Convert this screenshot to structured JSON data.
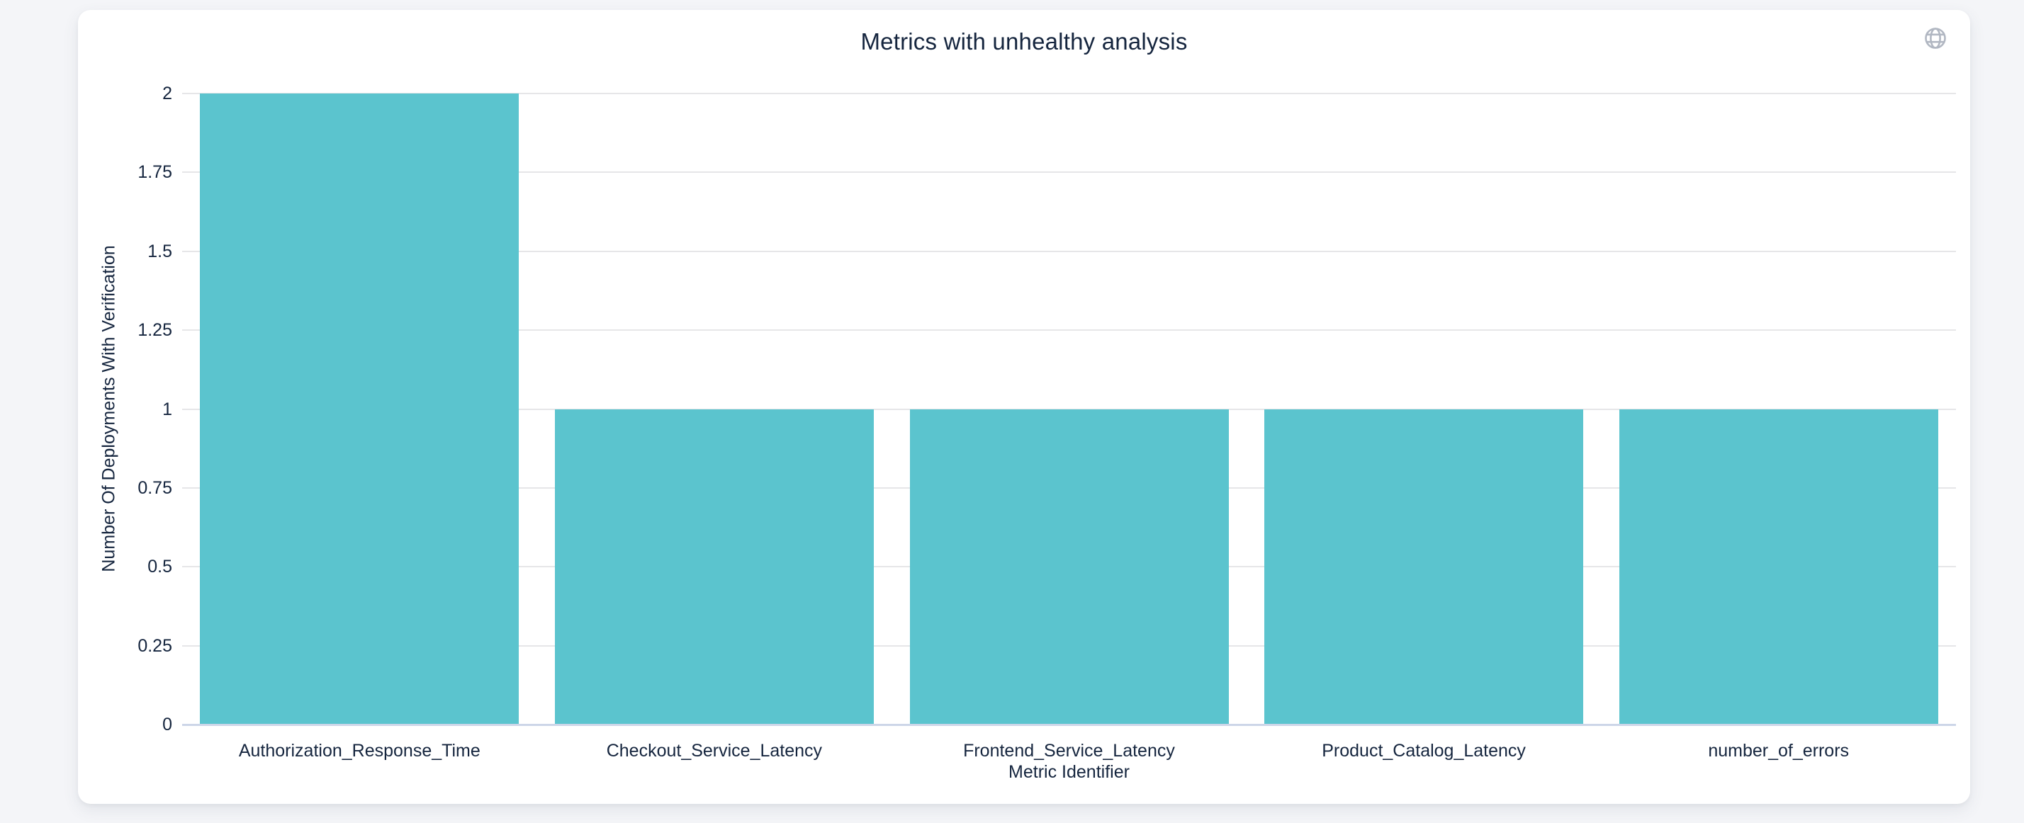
{
  "page": {
    "background_color": "#f4f5f8"
  },
  "header": {
    "title": "Metrics with unhealthy analysis",
    "icon": "globe-icon",
    "icon_color": "#b1b7c2"
  },
  "chart_data": {
    "type": "bar",
    "title": "Metrics with unhealthy analysis",
    "categories": [
      "Authorization_Response_Time",
      "Checkout_Service_Latency",
      "Frontend_Service_Latency",
      "Product_Catalog_Latency",
      "number_of_errors"
    ],
    "values": [
      2,
      1,
      1,
      1,
      1
    ],
    "xlabel": "Metric Identifier",
    "ylabel": "Number Of Deployments With Verification",
    "ylim": [
      0,
      2
    ],
    "yticks": [
      0,
      0.25,
      0.5,
      0.75,
      1,
      1.25,
      1.5,
      1.75,
      2
    ],
    "ytick_labels": [
      "0",
      "0.25",
      "0.5",
      "0.75",
      "1",
      "1.25",
      "1.5",
      "1.75",
      "2"
    ],
    "grid": true,
    "legend": "none",
    "bar_color": "#5bc4ce",
    "text_color": "#15253e",
    "grid_color": "#e6e6e8",
    "axis_line_color": "#cdd6e8"
  }
}
